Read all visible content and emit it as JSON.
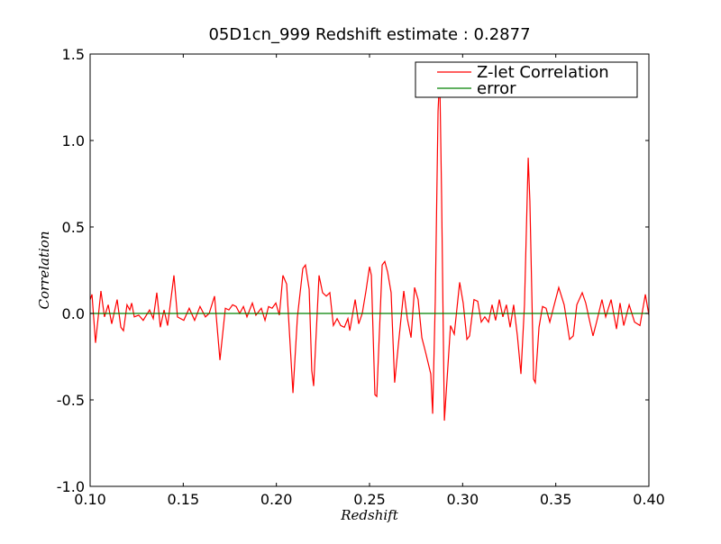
{
  "chart_data": {
    "type": "line",
    "title": "05D1cn_999 Redshift estimate : 0.2877",
    "xlabel": "Redshift",
    "ylabel": "Correlation",
    "xlim": [
      0.1,
      0.4
    ],
    "ylim": [
      -1.0,
      1.5
    ],
    "xticks": [
      {
        "value": 0.1,
        "label": "0.10"
      },
      {
        "value": 0.15,
        "label": "0.15"
      },
      {
        "value": 0.2,
        "label": "0.20"
      },
      {
        "value": 0.25,
        "label": "0.25"
      },
      {
        "value": 0.3,
        "label": "0.30"
      },
      {
        "value": 0.35,
        "label": "0.35"
      },
      {
        "value": 0.4,
        "label": "0.40"
      }
    ],
    "yticks": [
      {
        "value": -1.0,
        "label": "-1.0"
      },
      -0.5,
      {
        "value": 0.0,
        "label": "0.0"
      },
      0.5,
      {
        "value": 1.0,
        "label": "1.0"
      },
      1.5
    ],
    "legend": "upper right",
    "series": [
      {
        "name": "Z-let Correlation",
        "color": "#ff0000",
        "x": [
          0.1,
          0.101,
          0.1029,
          0.1058,
          0.1077,
          0.1097,
          0.1116,
          0.1145,
          0.1165,
          0.1179,
          0.1198,
          0.1213,
          0.1223,
          0.1237,
          0.1261,
          0.1285,
          0.1319,
          0.1339,
          0.1358,
          0.1377,
          0.1397,
          0.1416,
          0.145,
          0.1469,
          0.1503,
          0.1532,
          0.1561,
          0.159,
          0.1619,
          0.1639,
          0.1668,
          0.1697,
          0.1726,
          0.1745,
          0.1765,
          0.1784,
          0.1803,
          0.1823,
          0.1842,
          0.1871,
          0.189,
          0.1919,
          0.1939,
          0.1958,
          0.1977,
          0.1997,
          0.2016,
          0.2035,
          0.2055,
          0.2089,
          0.2113,
          0.2142,
          0.2156,
          0.2176,
          0.219,
          0.22,
          0.2229,
          0.2248,
          0.2268,
          0.2287,
          0.2306,
          0.2326,
          0.2345,
          0.2365,
          0.2384,
          0.2394,
          0.2423,
          0.2442,
          0.2461,
          0.2481,
          0.25,
          0.251,
          0.2529,
          0.2539,
          0.2568,
          0.2582,
          0.2597,
          0.2616,
          0.2635,
          0.2655,
          0.2684,
          0.2703,
          0.2723,
          0.2742,
          0.2761,
          0.2781,
          0.28,
          0.2829,
          0.2839,
          0.2853,
          0.2868,
          0.2877,
          0.2887,
          0.2902,
          0.2935,
          0.2955,
          0.2984,
          0.3003,
          0.3023,
          0.3037,
          0.3061,
          0.3081,
          0.31,
          0.3119,
          0.3139,
          0.3158,
          0.3177,
          0.3197,
          0.3216,
          0.3235,
          0.3255,
          0.3274,
          0.3294,
          0.3313,
          0.3332,
          0.3352,
          0.3361,
          0.3381,
          0.339,
          0.341,
          0.3429,
          0.3448,
          0.3468,
          0.3487,
          0.3516,
          0.3545,
          0.3574,
          0.3594,
          0.3613,
          0.3642,
          0.3661,
          0.3681,
          0.37,
          0.3719,
          0.3748,
          0.3768,
          0.3797,
          0.3826,
          0.3845,
          0.3865,
          0.3894,
          0.3923,
          0.3952,
          0.3981,
          0.4
        ],
        "values": [
          0.08,
          0.11,
          -0.17,
          0.13,
          -0.02,
          0.05,
          -0.06,
          0.08,
          -0.08,
          -0.1,
          0.05,
          0.02,
          0.06,
          -0.02,
          -0.01,
          -0.04,
          0.02,
          -0.03,
          0.12,
          -0.08,
          0.02,
          -0.07,
          0.22,
          -0.02,
          -0.04,
          0.03,
          -0.04,
          0.04,
          -0.02,
          0.0,
          0.1,
          -0.27,
          0.03,
          0.02,
          0.05,
          0.04,
          0.0,
          0.04,
          -0.02,
          0.06,
          -0.01,
          0.03,
          -0.04,
          0.04,
          0.03,
          0.06,
          -0.01,
          0.22,
          0.17,
          -0.46,
          -0.02,
          0.26,
          0.28,
          0.14,
          -0.33,
          -0.42,
          0.22,
          0.12,
          0.1,
          0.12,
          -0.07,
          -0.03,
          -0.07,
          -0.08,
          -0.03,
          -0.1,
          0.08,
          -0.06,
          0.0,
          0.13,
          0.27,
          0.22,
          -0.47,
          -0.48,
          0.28,
          0.3,
          0.24,
          0.12,
          -0.4,
          -0.18,
          0.13,
          -0.03,
          -0.14,
          0.15,
          0.08,
          -0.14,
          -0.22,
          -0.35,
          -0.58,
          0.07,
          1.17,
          1.38,
          0.68,
          -0.62,
          -0.07,
          -0.12,
          0.18,
          0.06,
          -0.15,
          -0.13,
          0.08,
          0.07,
          -0.05,
          -0.02,
          -0.05,
          0.05,
          -0.04,
          0.08,
          -0.02,
          0.05,
          -0.08,
          0.05,
          -0.13,
          -0.35,
          0.05,
          0.9,
          0.65,
          -0.38,
          -0.4,
          -0.08,
          0.04,
          0.03,
          -0.05,
          0.03,
          0.15,
          0.05,
          -0.15,
          -0.13,
          0.05,
          0.12,
          0.06,
          -0.04,
          -0.13,
          -0.05,
          0.08,
          -0.02,
          0.08,
          -0.09,
          0.06,
          -0.07,
          0.05,
          -0.05,
          -0.07,
          0.11,
          -0.01
        ]
      },
      {
        "name": "error",
        "color": "#008000",
        "x": [
          0.1,
          0.4
        ],
        "values": [
          0,
          0
        ]
      }
    ],
    "marker": {
      "x": 0.2877,
      "y": 1.36
    }
  }
}
